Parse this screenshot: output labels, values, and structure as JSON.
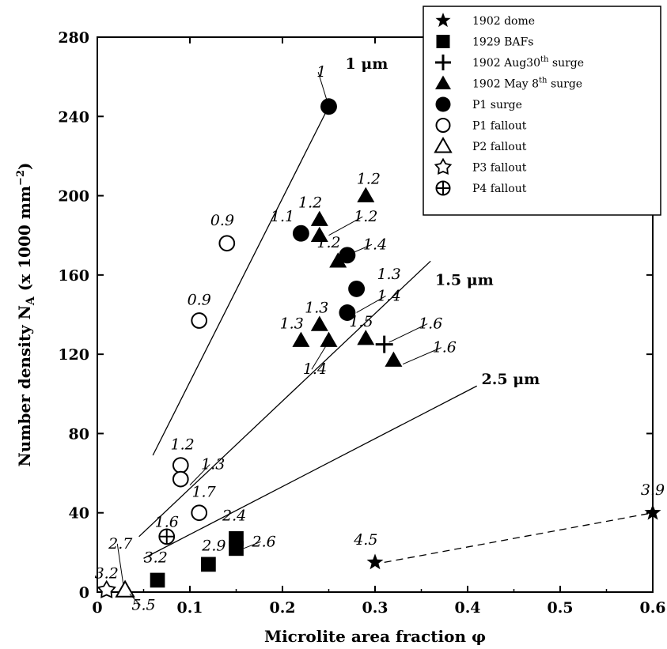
{
  "chart_data": {
    "type": "scatter",
    "xlabel": "Microlite area fraction φ",
    "ylabel": "Number density NA (x 1000 mm⁻²)",
    "xlim": [
      0,
      0.6
    ],
    "ylim": [
      0,
      280
    ],
    "x_ticks": [
      0,
      0.1,
      0.2,
      0.3,
      0.4,
      0.5,
      0.6
    ],
    "x_tick_labels": [
      "0",
      "0.1",
      "0.2",
      "0.3",
      "0.4",
      "0.5",
      "0.6"
    ],
    "y_ticks": [
      0,
      40,
      80,
      120,
      160,
      200,
      240,
      280
    ],
    "y_tick_labels": [
      "0",
      "40",
      "80",
      "120",
      "160",
      "200",
      "240",
      "280"
    ],
    "grid": false,
    "legend_position": "top-right",
    "series": [
      {
        "name": "1902 dome",
        "marker": "star-filled",
        "points": [
          {
            "x": 0.3,
            "y": 15
          },
          {
            "x": 0.6,
            "y": 40
          }
        ]
      },
      {
        "name": "1929 BAFs",
        "marker": "square-filled",
        "points": [
          {
            "x": 0.065,
            "y": 6
          },
          {
            "x": 0.12,
            "y": 14
          },
          {
            "x": 0.15,
            "y": 22
          },
          {
            "x": 0.15,
            "y": 27
          }
        ]
      },
      {
        "name": "1902 Aug30th surge",
        "marker": "plus",
        "points": [
          {
            "x": 0.31,
            "y": 125
          }
        ]
      },
      {
        "name": "1902 May 8th surge",
        "marker": "triangle-filled",
        "points": [
          {
            "x": 0.29,
            "y": 200
          },
          {
            "x": 0.24,
            "y": 188
          },
          {
            "x": 0.24,
            "y": 180
          },
          {
            "x": 0.26,
            "y": 167
          },
          {
            "x": 0.24,
            "y": 135
          },
          {
            "x": 0.22,
            "y": 127
          },
          {
            "x": 0.25,
            "y": 127
          },
          {
            "x": 0.29,
            "y": 128
          },
          {
            "x": 0.32,
            "y": 117
          }
        ]
      },
      {
        "name": "P1 surge",
        "marker": "circle-filled",
        "points": [
          {
            "x": 0.25,
            "y": 245
          },
          {
            "x": 0.22,
            "y": 181
          },
          {
            "x": 0.27,
            "y": 170
          },
          {
            "x": 0.28,
            "y": 153
          },
          {
            "x": 0.27,
            "y": 141
          }
        ]
      },
      {
        "name": "P1 fallout",
        "marker": "circle-open",
        "points": [
          {
            "x": 0.14,
            "y": 176
          },
          {
            "x": 0.11,
            "y": 137
          },
          {
            "x": 0.09,
            "y": 64
          },
          {
            "x": 0.09,
            "y": 57
          },
          {
            "x": 0.11,
            "y": 40
          }
        ]
      },
      {
        "name": "P2 fallout",
        "marker": "triangle-open",
        "points": [
          {
            "x": 0.03,
            "y": 1
          }
        ]
      },
      {
        "name": "P3 fallout",
        "marker": "star-open",
        "points": [
          {
            "x": 0.01,
            "y": 1
          }
        ]
      },
      {
        "name": "P4 fallout",
        "marker": "circle-plus",
        "points": [
          {
            "x": 0.075,
            "y": 28
          }
        ]
      }
    ],
    "reference_lines": [
      {
        "label": "1 μm",
        "x": [
          0.06,
          0.25
        ],
        "y": [
          69,
          245
        ]
      },
      {
        "label": "1.5 μm",
        "x": [
          0.045,
          0.36
        ],
        "y": [
          28,
          167
        ]
      },
      {
        "label": "2.5 μm",
        "x": [
          0.05,
          0.41
        ],
        "y": [
          17,
          104
        ]
      }
    ],
    "dashed_lines": [
      {
        "x": [
          0.31,
          0.6
        ],
        "y": [
          15,
          40
        ]
      }
    ],
    "annotations": [
      {
        "text": "1",
        "x": 0.242,
        "y": 260,
        "anchor": {
          "x": 0.25,
          "y": 245
        }
      },
      {
        "text": "1.2",
        "x": 0.293,
        "y": 206
      },
      {
        "text": "1.2",
        "x": 0.23,
        "y": 194
      },
      {
        "text": "1.1",
        "x": 0.2,
        "y": 187
      },
      {
        "text": "1.2",
        "x": 0.29,
        "y": 187,
        "anchor": {
          "x": 0.25,
          "y": 180
        }
      },
      {
        "text": "1.2",
        "x": 0.25,
        "y": 174
      },
      {
        "text": "1.4",
        "x": 0.3,
        "y": 173,
        "anchor": {
          "x": 0.27,
          "y": 170
        }
      },
      {
        "text": "0.9",
        "x": 0.135,
        "y": 185
      },
      {
        "text": "1.3",
        "x": 0.315,
        "y": 158
      },
      {
        "text": "0.9",
        "x": 0.11,
        "y": 145
      },
      {
        "text": "1.4",
        "x": 0.315,
        "y": 147,
        "anchor": {
          "x": 0.28,
          "y": 141
        }
      },
      {
        "text": "1.3",
        "x": 0.237,
        "y": 141
      },
      {
        "text": "1.3",
        "x": 0.21,
        "y": 133
      },
      {
        "text": "1.5",
        "x": 0.285,
        "y": 134
      },
      {
        "text": "1.6",
        "x": 0.36,
        "y": 133,
        "anchor": {
          "x": 0.315,
          "y": 126
        }
      },
      {
        "text": "1.6",
        "x": 0.375,
        "y": 121,
        "anchor": {
          "x": 0.33,
          "y": 115
        }
      },
      {
        "text": "1.4",
        "x": 0.235,
        "y": 110,
        "anchor": {
          "x": 0.248,
          "y": 125
        }
      },
      {
        "text": "1.2",
        "x": 0.092,
        "y": 72
      },
      {
        "text": "1.3",
        "x": 0.125,
        "y": 62,
        "anchor": {
          "x": 0.1,
          "y": 54
        }
      },
      {
        "text": "1.7",
        "x": 0.115,
        "y": 48
      },
      {
        "text": "1.6",
        "x": 0.075,
        "y": 33
      },
      {
        "text": "2.7",
        "x": 0.025,
        "y": 22,
        "anchor": {
          "x": 0.028,
          "y": 4
        }
      },
      {
        "text": "2.4",
        "x": 0.148,
        "y": 36
      },
      {
        "text": "2.9",
        "x": 0.126,
        "y": 21
      },
      {
        "text": "2.6",
        "x": 0.18,
        "y": 23,
        "anchor": {
          "x": 0.158,
          "y": 22
        }
      },
      {
        "text": "3.2",
        "x": 0.063,
        "y": 15
      },
      {
        "text": "3.2",
        "x": 0.01,
        "y": 7
      },
      {
        "text": "5.5",
        "x": 0.05,
        "y": -9,
        "anchor": {
          "x": 0.035,
          "y": -1
        }
      },
      {
        "text": "4.5",
        "x": 0.29,
        "y": 24
      },
      {
        "text": "3.9",
        "x": 0.6,
        "y": 49
      }
    ],
    "line_label_positions": [
      {
        "label": "1 μm",
        "x": 0.268,
        "y": 264
      },
      {
        "label": "1.5 μm",
        "x": 0.365,
        "y": 155
      },
      {
        "label": "2.5 μm",
        "x": 0.415,
        "y": 105
      }
    ]
  },
  "legend": {
    "items": [
      {
        "marker": "star-filled",
        "label": "1902 dome"
      },
      {
        "marker": "square-filled",
        "label": "1929 BAFs"
      },
      {
        "marker": "plus",
        "label": "1902 Aug30",
        "sup": "th",
        "tail": " surge"
      },
      {
        "marker": "triangle-filled",
        "label": "1902 May 8",
        "sup": "th",
        "tail": " surge"
      },
      {
        "marker": "circle-filled",
        "label": "P1 surge"
      },
      {
        "marker": "circle-open",
        "label": "P1 fallout"
      },
      {
        "marker": "triangle-open",
        "label": "P2 fallout"
      },
      {
        "marker": "star-open",
        "label": "P3 fallout"
      },
      {
        "marker": "circle-plus",
        "label": "P4 fallout"
      }
    ]
  },
  "axis_titles": {
    "x": "Microlite area fraction φ",
    "y_main": "Number density N",
    "y_sub": "A",
    "y_tail": " (x 1000 mm",
    "y_sup": "−2",
    "y_close": ")"
  }
}
